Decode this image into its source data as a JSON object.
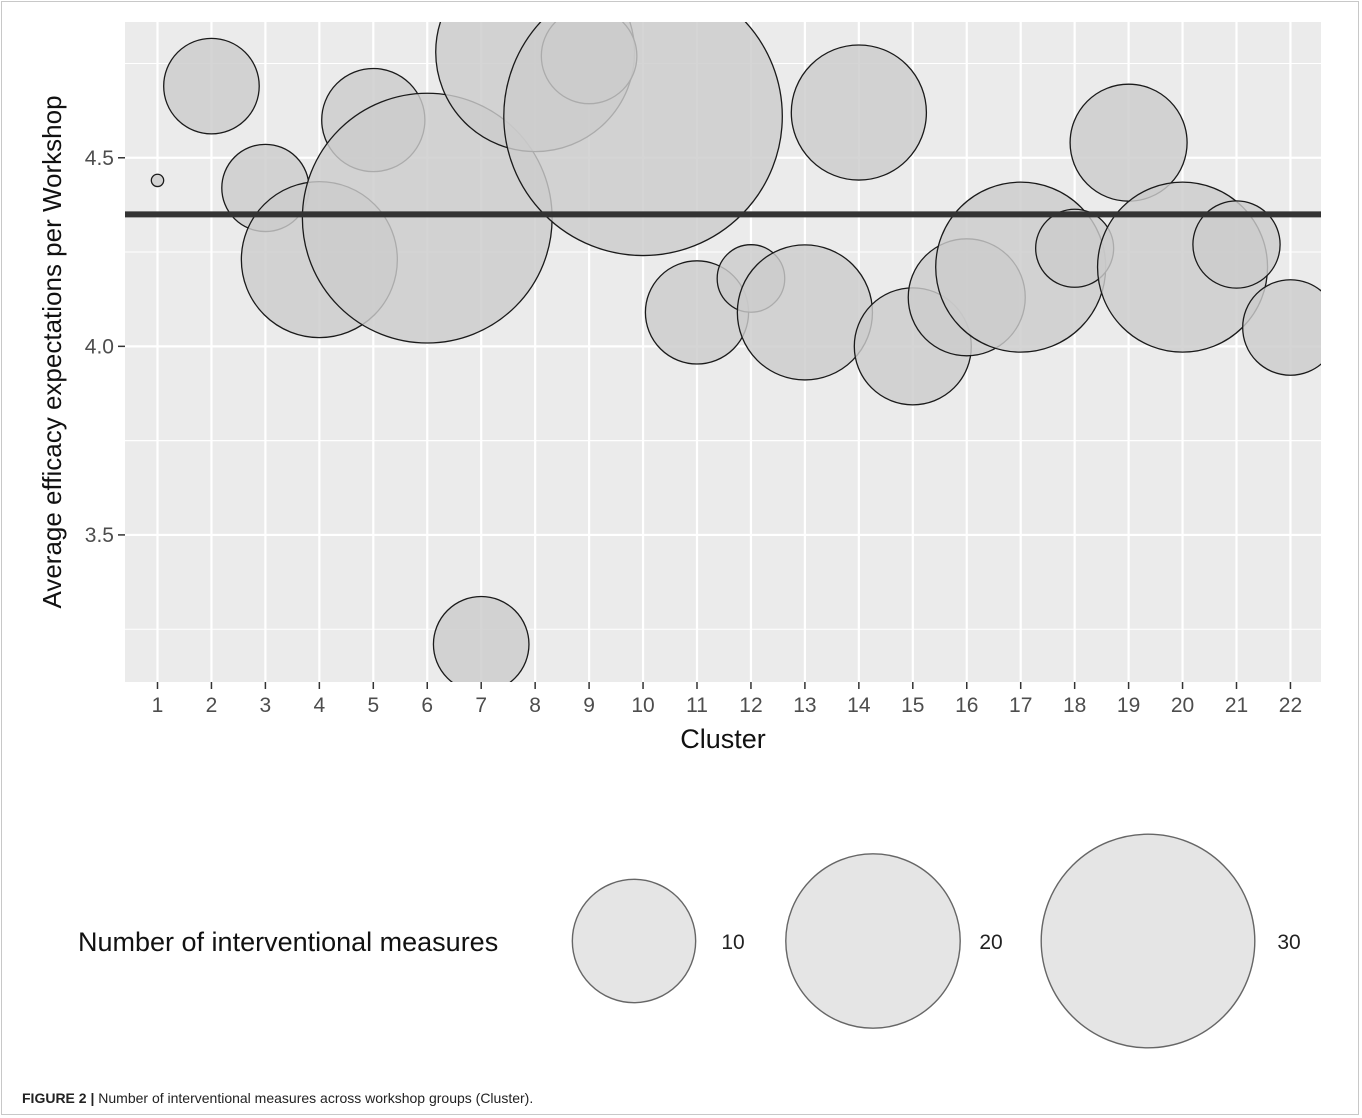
{
  "chart_data": {
    "type": "scatter",
    "variant": "bubble",
    "xlabel": "Cluster",
    "ylabel": "Average efficacy expectations per Workshop",
    "categories": [
      "1",
      "2",
      "3",
      "4",
      "5",
      "6",
      "7",
      "8",
      "9",
      "10",
      "11",
      "12",
      "13",
      "14",
      "15",
      "16",
      "17",
      "18",
      "19",
      "20",
      "21",
      "22"
    ],
    "yticks": [
      "3.5",
      "4.0",
      "4.5"
    ],
    "ylim": [
      3.11,
      4.86
    ],
    "points": [
      {
        "x": 1,
        "y": 4.44,
        "size": 0.1
      },
      {
        "x": 2,
        "y": 4.69,
        "size": 6
      },
      {
        "x": 3,
        "y": 4.42,
        "size": 5
      },
      {
        "x": 4,
        "y": 4.23,
        "size": 16
      },
      {
        "x": 5,
        "y": 4.6,
        "size": 7
      },
      {
        "x": 6,
        "y": 4.34,
        "size": 41
      },
      {
        "x": 7,
        "y": 3.21,
        "size": 6
      },
      {
        "x": 8,
        "y": 4.78,
        "size": 26
      },
      {
        "x": 9,
        "y": 4.77,
        "size": 6
      },
      {
        "x": 10,
        "y": 4.61,
        "size": 51
      },
      {
        "x": 11,
        "y": 4.09,
        "size": 7
      },
      {
        "x": 12,
        "y": 4.18,
        "size": 3
      },
      {
        "x": 13,
        "y": 4.09,
        "size": 12
      },
      {
        "x": 14,
        "y": 4.62,
        "size": 12
      },
      {
        "x": 15,
        "y": 4.0,
        "size": 9
      },
      {
        "x": 16,
        "y": 4.13,
        "size": 9
      },
      {
        "x": 17,
        "y": 4.21,
        "size": 19
      },
      {
        "x": 18,
        "y": 4.26,
        "size": 4
      },
      {
        "x": 19,
        "y": 4.54,
        "size": 9
      },
      {
        "x": 20,
        "y": 4.21,
        "size": 19
      },
      {
        "x": 21,
        "y": 4.27,
        "size": 5
      },
      {
        "x": 22,
        "y": 4.05,
        "size": 6
      }
    ],
    "hline": {
      "y": 4.35
    },
    "grid": true,
    "legend": {
      "title": "Number of interventional measures",
      "position": "bottom",
      "items": [
        {
          "label": "10",
          "value": 10
        },
        {
          "label": "20",
          "value": 20
        },
        {
          "label": "30",
          "value": 30
        }
      ]
    },
    "colors": {
      "panel": "#ebebeb",
      "grid": "#ffffff",
      "bubble_fill": "#cccccc",
      "bubble_stroke": "#1a1a1a",
      "hline": "#333333",
      "legend_fill": "#e5e5e5"
    }
  },
  "caption": {
    "label": "FIGURE 2 |",
    "text": " Number of interventional measures across workshop groups (Cluster)."
  }
}
